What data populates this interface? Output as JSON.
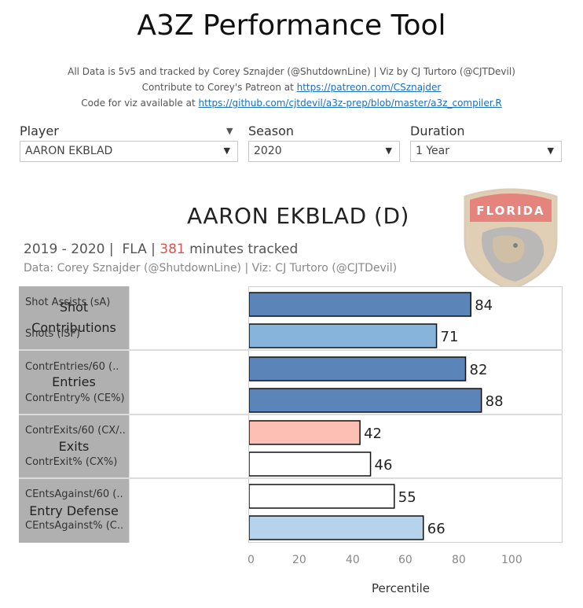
{
  "title": "A3Z Performance Tool",
  "credits": {
    "line1": "All Data is 5v5 and tracked by Corey Sznajder (@ShutdownLine) | Viz by CJ Turtoro (@CJTDevil)",
    "line2_prefix": "Contribute to Corey's Patreon at ",
    "line2_link": "https://patreon.com/CSznajder",
    "line3_prefix": "Code for viz available at ",
    "line3_link": "https://github.com/cjtdevil/a3z-prep/blob/master/a3z_compiler.R"
  },
  "filters": {
    "player": {
      "label": "Player",
      "value": "AARON EKBLAD"
    },
    "season": {
      "label": "Season",
      "value": "2020"
    },
    "duration": {
      "label": "Duration",
      "value": "1 Year"
    }
  },
  "header": {
    "player_name": "AARON EKBLAD (D)",
    "season_range": "2019 - 2020",
    "team": "FLA",
    "minutes": "381",
    "minutes_suffix": "minutes tracked",
    "data_credit": "Data: Corey Sznajder (@ShutdownLine) | Viz: CJ Turtoro (@CJTDevil)"
  },
  "logo": {
    "text": "FLORIDA",
    "icon": "florida-panthers-logo"
  },
  "chart_data": {
    "type": "bar",
    "orientation": "horizontal",
    "xlabel": "Percentile",
    "xlim": [
      0,
      100
    ],
    "xticks": [
      "0",
      "20",
      "40",
      "60",
      "80",
      "100"
    ],
    "groups": [
      {
        "name": "Shot Contributions",
        "metrics": [
          {
            "label": "Shot Assists (sA)",
            "value": 84,
            "color": "#5b84b8"
          },
          {
            "label": "Shots (iSF)",
            "value": 71,
            "color": "#86b4da"
          }
        ]
      },
      {
        "name": "Entries",
        "metrics": [
          {
            "label": "ContrEntries/60 (..",
            "value": 82,
            "color": "#5b84b8"
          },
          {
            "label": "ContrEntry% (CE%)",
            "value": 88,
            "color": "#5b84b8"
          }
        ]
      },
      {
        "name": "Exits",
        "metrics": [
          {
            "label": "ContrExits/60 (CX/..",
            "value": 42,
            "color": "#fcbfb3"
          },
          {
            "label": "ContrExit% (CX%)",
            "value": 46,
            "color": "#ffffff"
          }
        ]
      },
      {
        "name": "Entry Defense",
        "metrics": [
          {
            "label": "CEntsAgainst/60 (..",
            "value": 55,
            "color": "#ffffff"
          },
          {
            "label": "CEntsAgainst% (C..",
            "value": 66,
            "color": "#b6d3ec"
          }
        ]
      }
    ]
  }
}
